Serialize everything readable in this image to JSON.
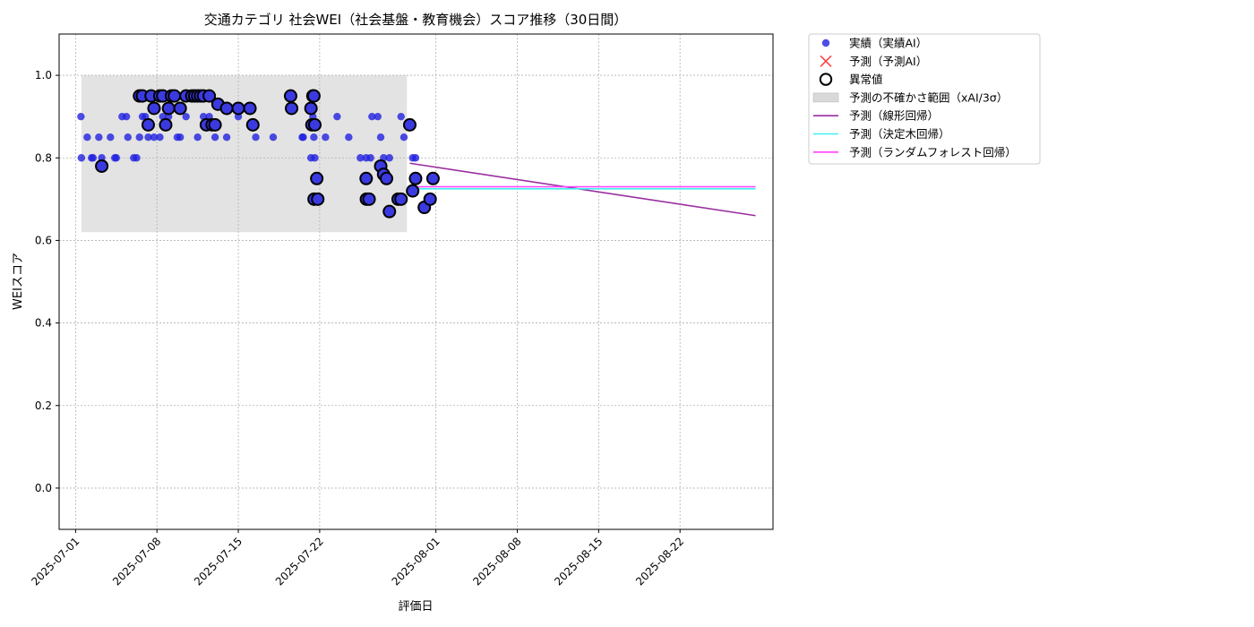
{
  "chart_data": {
    "type": "scatter",
    "title": "交通カテゴリ 社会WEI（社会基盤・教育機会）スコア推移（30日間）",
    "xlabel": "評価日",
    "ylabel": "WEIスコア",
    "xlim": [
      "2025-06-29T14:00",
      "2025-08-30T00:00"
    ],
    "ylim": [
      -0.1,
      1.1
    ],
    "yticks": [
      "0.0",
      "0.2",
      "0.4",
      "0.6",
      "0.8",
      "1.0"
    ],
    "xticks": [
      "2025-07-01",
      "2025-07-08",
      "2025-07-15",
      "2025-07-22",
      "2025-08-01",
      "2025-08-08",
      "2025-08-15",
      "2025-08-22"
    ],
    "grid": true,
    "legend_position": "outside-top-right",
    "colors": {
      "actual": "#2020e0",
      "anomaly_edge": "#000000",
      "prediction_marker": "#ff4444",
      "uncertainty_band": "#d9d9d9",
      "linear": "#9a2ea0",
      "tree": "#40f0f0",
      "forest": "#ff40ff"
    },
    "legend": [
      {
        "label": "実績（実績AI）",
        "kind": "dot"
      },
      {
        "label": "予測（予測AI）",
        "kind": "cross"
      },
      {
        "label": "異常値",
        "kind": "ring"
      },
      {
        "label": "予測の不確かさ範囲（xAI/3σ）",
        "kind": "band"
      },
      {
        "label": "予測（線形回帰）",
        "kind": "line-linear"
      },
      {
        "label": "予測（決定木回帰）",
        "kind": "line-tree"
      },
      {
        "label": "予測（ランダムフォレスト回帰）",
        "kind": "line-forest"
      }
    ],
    "uncertainty_band": {
      "x": [
        "2025-07-01T12:00",
        "2025-07-29T12:00"
      ],
      "y": [
        0.62,
        1.0
      ]
    },
    "series": [
      {
        "name": "実績（実績AI）",
        "points": [
          [
            "2025-07-01T11:00",
            0.9
          ],
          [
            "2025-07-01T12:00",
            0.8
          ],
          [
            "2025-07-02T00:00",
            0.85
          ],
          [
            "2025-07-02T09:00",
            0.8
          ],
          [
            "2025-07-02T12:00",
            0.8
          ],
          [
            "2025-07-03T00:00",
            0.85
          ],
          [
            "2025-07-03T06:00",
            0.8
          ],
          [
            "2025-07-04T00:00",
            0.85
          ],
          [
            "2025-07-04T09:00",
            0.8
          ],
          [
            "2025-07-04T12:00",
            0.8
          ],
          [
            "2025-07-05T00:00",
            0.9
          ],
          [
            "2025-07-05T09:00",
            0.9
          ],
          [
            "2025-07-05T12:00",
            0.85
          ],
          [
            "2025-07-06T00:00",
            0.8
          ],
          [
            "2025-07-06T06:00",
            0.8
          ],
          [
            "2025-07-06T12:00",
            0.85
          ],
          [
            "2025-07-06T18:00",
            0.9
          ],
          [
            "2025-07-07T00:00",
            0.9
          ],
          [
            "2025-07-07T06:00",
            0.85
          ],
          [
            "2025-07-07T18:00",
            0.85
          ],
          [
            "2025-07-08T06:00",
            0.85
          ],
          [
            "2025-07-08T12:00",
            0.9
          ],
          [
            "2025-07-09T00:00",
            0.9
          ],
          [
            "2025-07-09T18:00",
            0.85
          ],
          [
            "2025-07-10T00:00",
            0.85
          ],
          [
            "2025-07-10T12:00",
            0.9
          ],
          [
            "2025-07-11T12:00",
            0.85
          ],
          [
            "2025-07-12T00:00",
            0.9
          ],
          [
            "2025-07-12T12:00",
            0.9
          ],
          [
            "2025-07-13T00:00",
            0.85
          ],
          [
            "2025-07-14T00:00",
            0.85
          ],
          [
            "2025-07-15T00:00",
            0.9
          ],
          [
            "2025-07-16T12:00",
            0.85
          ],
          [
            "2025-07-18T00:00",
            0.85
          ],
          [
            "2025-07-19T12:00",
            0.95
          ],
          [
            "2025-07-20T12:00",
            0.85
          ],
          [
            "2025-07-20T14:00",
            0.85
          ],
          [
            "2025-07-21T06:00",
            0.8
          ],
          [
            "2025-07-21T10:00",
            0.9
          ],
          [
            "2025-07-21T12:00",
            0.85
          ],
          [
            "2025-07-21T14:00",
            0.8
          ],
          [
            "2025-07-22T12:00",
            0.85
          ],
          [
            "2025-07-23T12:00",
            0.9
          ],
          [
            "2025-07-24T12:00",
            0.85
          ],
          [
            "2025-07-25T12:00",
            0.8
          ],
          [
            "2025-07-26T00:00",
            0.8
          ],
          [
            "2025-07-26T09:00",
            0.8
          ],
          [
            "2025-07-26T12:00",
            0.9
          ],
          [
            "2025-07-27T00:00",
            0.9
          ],
          [
            "2025-07-27T06:00",
            0.85
          ],
          [
            "2025-07-27T12:00",
            0.8
          ],
          [
            "2025-07-28T00:00",
            0.8
          ],
          [
            "2025-07-29T00:00",
            0.9
          ],
          [
            "2025-07-29T06:00",
            0.85
          ],
          [
            "2025-07-30T00:00",
            0.8
          ],
          [
            "2025-07-30T06:00",
            0.8
          ]
        ]
      },
      {
        "name": "異常値",
        "points": [
          [
            "2025-07-03T06:00",
            0.78
          ],
          [
            "2025-07-06T12:00",
            0.95
          ],
          [
            "2025-07-06T18:00",
            0.95
          ],
          [
            "2025-07-07T06:00",
            0.88
          ],
          [
            "2025-07-07T12:00",
            0.95
          ],
          [
            "2025-07-07T18:00",
            0.92
          ],
          [
            "2025-07-08T06:00",
            0.95
          ],
          [
            "2025-07-08T12:00",
            0.95
          ],
          [
            "2025-07-08T18:00",
            0.88
          ],
          [
            "2025-07-09T00:00",
            0.92
          ],
          [
            "2025-07-09T06:00",
            0.95
          ],
          [
            "2025-07-09T12:00",
            0.95
          ],
          [
            "2025-07-10T00:00",
            0.92
          ],
          [
            "2025-07-10T12:00",
            0.95
          ],
          [
            "2025-07-11T00:00",
            0.95
          ],
          [
            "2025-07-11T06:00",
            0.95
          ],
          [
            "2025-07-11T12:00",
            0.95
          ],
          [
            "2025-07-11T18:00",
            0.95
          ],
          [
            "2025-07-12T00:00",
            0.95
          ],
          [
            "2025-07-12T06:00",
            0.88
          ],
          [
            "2025-07-12T12:00",
            0.95
          ],
          [
            "2025-07-12T18:00",
            0.88
          ],
          [
            "2025-07-13T00:00",
            0.88
          ],
          [
            "2025-07-13T06:00",
            0.93
          ],
          [
            "2025-07-14T00:00",
            0.92
          ],
          [
            "2025-07-15T00:00",
            0.92
          ],
          [
            "2025-07-16T00:00",
            0.92
          ],
          [
            "2025-07-16T06:00",
            0.88
          ],
          [
            "2025-07-19T12:00",
            0.95
          ],
          [
            "2025-07-19T14:00",
            0.92
          ],
          [
            "2025-07-21T06:00",
            0.92
          ],
          [
            "2025-07-21T08:00",
            0.88
          ],
          [
            "2025-07-21T10:00",
            0.95
          ],
          [
            "2025-07-21T12:00",
            0.95
          ],
          [
            "2025-07-21T14:00",
            0.88
          ],
          [
            "2025-07-21T12:30",
            0.7
          ],
          [
            "2025-07-21T18:00",
            0.75
          ],
          [
            "2025-07-21T20:00",
            0.7
          ],
          [
            "2025-07-26T00:00",
            0.75
          ],
          [
            "2025-07-26T00:30",
            0.7
          ],
          [
            "2025-07-26T06:00",
            0.7
          ],
          [
            "2025-07-27T06:00",
            0.78
          ],
          [
            "2025-07-27T12:00",
            0.76
          ],
          [
            "2025-07-27T18:00",
            0.75
          ],
          [
            "2025-07-28T00:00",
            0.67
          ],
          [
            "2025-07-28T18:00",
            0.7
          ],
          [
            "2025-07-29T00:00",
            0.7
          ],
          [
            "2025-07-29T18:00",
            0.88
          ],
          [
            "2025-07-30T00:00",
            0.72
          ],
          [
            "2025-07-30T06:00",
            0.75
          ],
          [
            "2025-07-31T00:00",
            0.68
          ],
          [
            "2025-07-31T18:00",
            0.75
          ],
          [
            "2025-07-31T12:00",
            0.7
          ]
        ]
      },
      {
        "name": "予測（線形回帰）",
        "points": [
          [
            "2025-07-29T18:00",
            0.787
          ],
          [
            "2025-08-28T12:00",
            0.66
          ]
        ]
      },
      {
        "name": "予測（決定木回帰）",
        "points": [
          [
            "2025-07-29T18:00",
            0.725
          ],
          [
            "2025-08-28T12:00",
            0.725
          ]
        ]
      },
      {
        "name": "予測（ランダムフォレスト回帰）",
        "points": [
          [
            "2025-07-29T18:00",
            0.73
          ],
          [
            "2025-08-28T12:00",
            0.73
          ]
        ]
      }
    ]
  }
}
